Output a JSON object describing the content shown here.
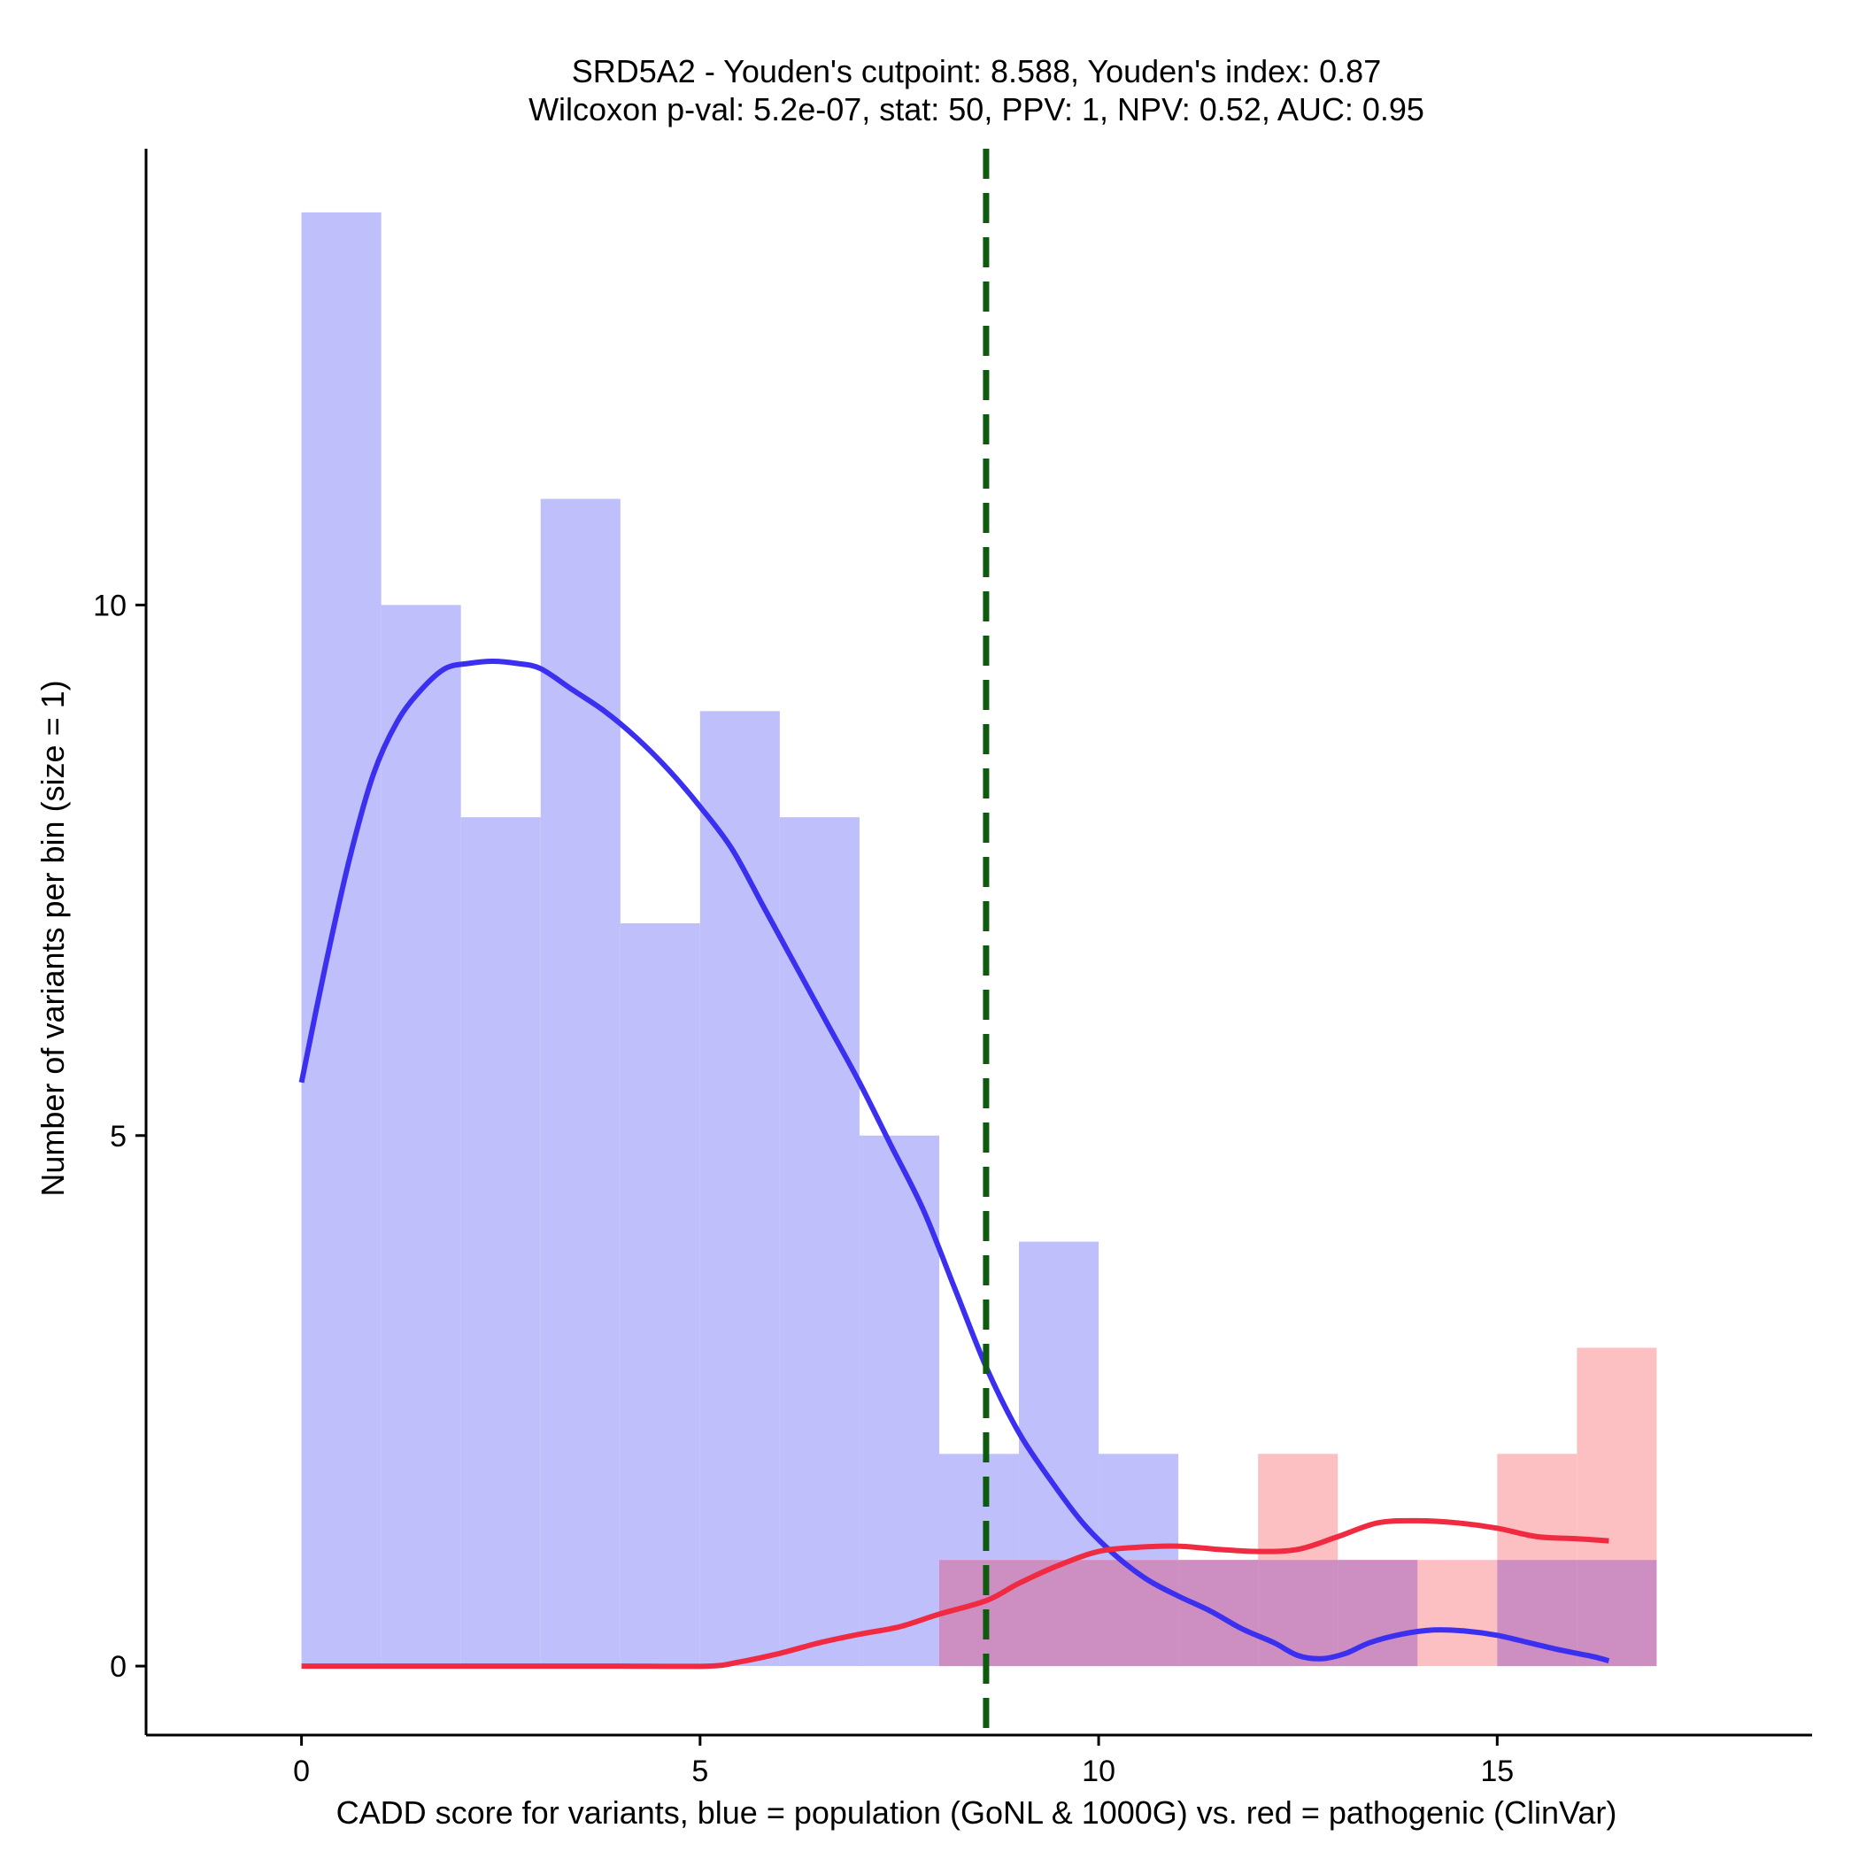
{
  "chart_data": {
    "type": "histogram",
    "title_line1": "SRD5A2 - Youden's cutpoint: 8.588, Youden's index: 0.87",
    "title_line2": "Wilcoxon p-val: 5.2e-07, stat: 50, PPV: 1, NPV: 0.52, AUC: 0.95",
    "xlabel": "CADD score for variants, blue = population (GoNL & 1000G) vs. red = pathogenic (ClinVar)",
    "ylabel": "Number of variants per bin (size = 1)",
    "xlim": [
      -1.95,
      18.95
    ],
    "ylim": [
      -0.65,
      14.3
    ],
    "x_ticks": [
      0,
      5,
      10,
      15
    ],
    "y_ticks": [
      0,
      5,
      10
    ],
    "bin_width": 1,
    "cutpoint": 8.588,
    "colors": {
      "population_bar": "#bfbffc",
      "pathogenic_bar": "#fcbfc2",
      "overlap_bar": "#cd8ec1",
      "population_line": "#3b30f0",
      "pathogenic_line": "#f02a40",
      "cutpoint_line": "#0e5a0e"
    },
    "series": [
      {
        "name": "population (GoNL & 1000G)",
        "bin_starts": [
          0,
          1,
          2,
          3,
          4,
          5,
          6,
          7,
          8,
          9,
          10,
          11,
          12,
          13,
          14,
          15,
          16
        ],
        "counts": [
          13.7,
          10,
          8,
          11,
          7,
          9,
          8,
          5,
          2,
          4,
          2,
          1,
          1,
          1,
          0,
          1,
          1
        ]
      },
      {
        "name": "pathogenic (ClinVar)",
        "bin_starts": [
          0,
          1,
          2,
          3,
          4,
          5,
          6,
          7,
          8,
          9,
          10,
          11,
          12,
          13,
          14,
          15,
          16
        ],
        "counts": [
          0,
          0,
          0,
          0,
          0,
          0,
          0,
          0,
          1,
          1,
          1,
          1,
          2,
          1,
          1,
          2,
          3
        ]
      }
    ],
    "density_lines": [
      {
        "name": "population density",
        "x": [
          0,
          0.3,
          0.6,
          0.9,
          1.2,
          1.5,
          1.8,
          2.1,
          2.4,
          2.7,
          3.0,
          3.4,
          3.8,
          4.2,
          4.6,
          5.0,
          5.4,
          5.8,
          6.2,
          6.6,
          7.0,
          7.4,
          7.8,
          8.2,
          8.6,
          9.0,
          9.4,
          9.8,
          10.2,
          10.6,
          11.0,
          11.4,
          11.8,
          12.2,
          12.5,
          12.8,
          13.1,
          13.4,
          13.8,
          14.2,
          14.6,
          15.0,
          15.4,
          15.8,
          16.2,
          16.4
        ],
        "y": [
          5.5,
          6.6,
          7.6,
          8.4,
          8.9,
          9.2,
          9.4,
          9.45,
          9.47,
          9.45,
          9.4,
          9.2,
          9.0,
          8.75,
          8.45,
          8.1,
          7.7,
          7.15,
          6.6,
          6.05,
          5.5,
          4.9,
          4.3,
          3.55,
          2.8,
          2.2,
          1.75,
          1.35,
          1.05,
          0.82,
          0.66,
          0.52,
          0.35,
          0.22,
          0.1,
          0.07,
          0.12,
          0.22,
          0.3,
          0.34,
          0.33,
          0.29,
          0.22,
          0.15,
          0.09,
          0.05
        ]
      },
      {
        "name": "pathogenic density",
        "x": [
          0,
          1,
          2,
          3,
          4,
          5.1,
          5.5,
          6.0,
          6.5,
          7.0,
          7.5,
          8.0,
          8.6,
          9.0,
          9.5,
          10.0,
          10.5,
          11.0,
          11.5,
          12.0,
          12.5,
          13.0,
          13.5,
          14.0,
          14.5,
          15.0,
          15.5,
          16.0,
          16.4
        ],
        "y": [
          0,
          0,
          0,
          0,
          0,
          0,
          0.04,
          0.12,
          0.22,
          0.3,
          0.37,
          0.49,
          0.62,
          0.78,
          0.95,
          1.08,
          1.12,
          1.13,
          1.1,
          1.08,
          1.1,
          1.22,
          1.35,
          1.37,
          1.35,
          1.3,
          1.22,
          1.2,
          1.18
        ]
      }
    ]
  }
}
